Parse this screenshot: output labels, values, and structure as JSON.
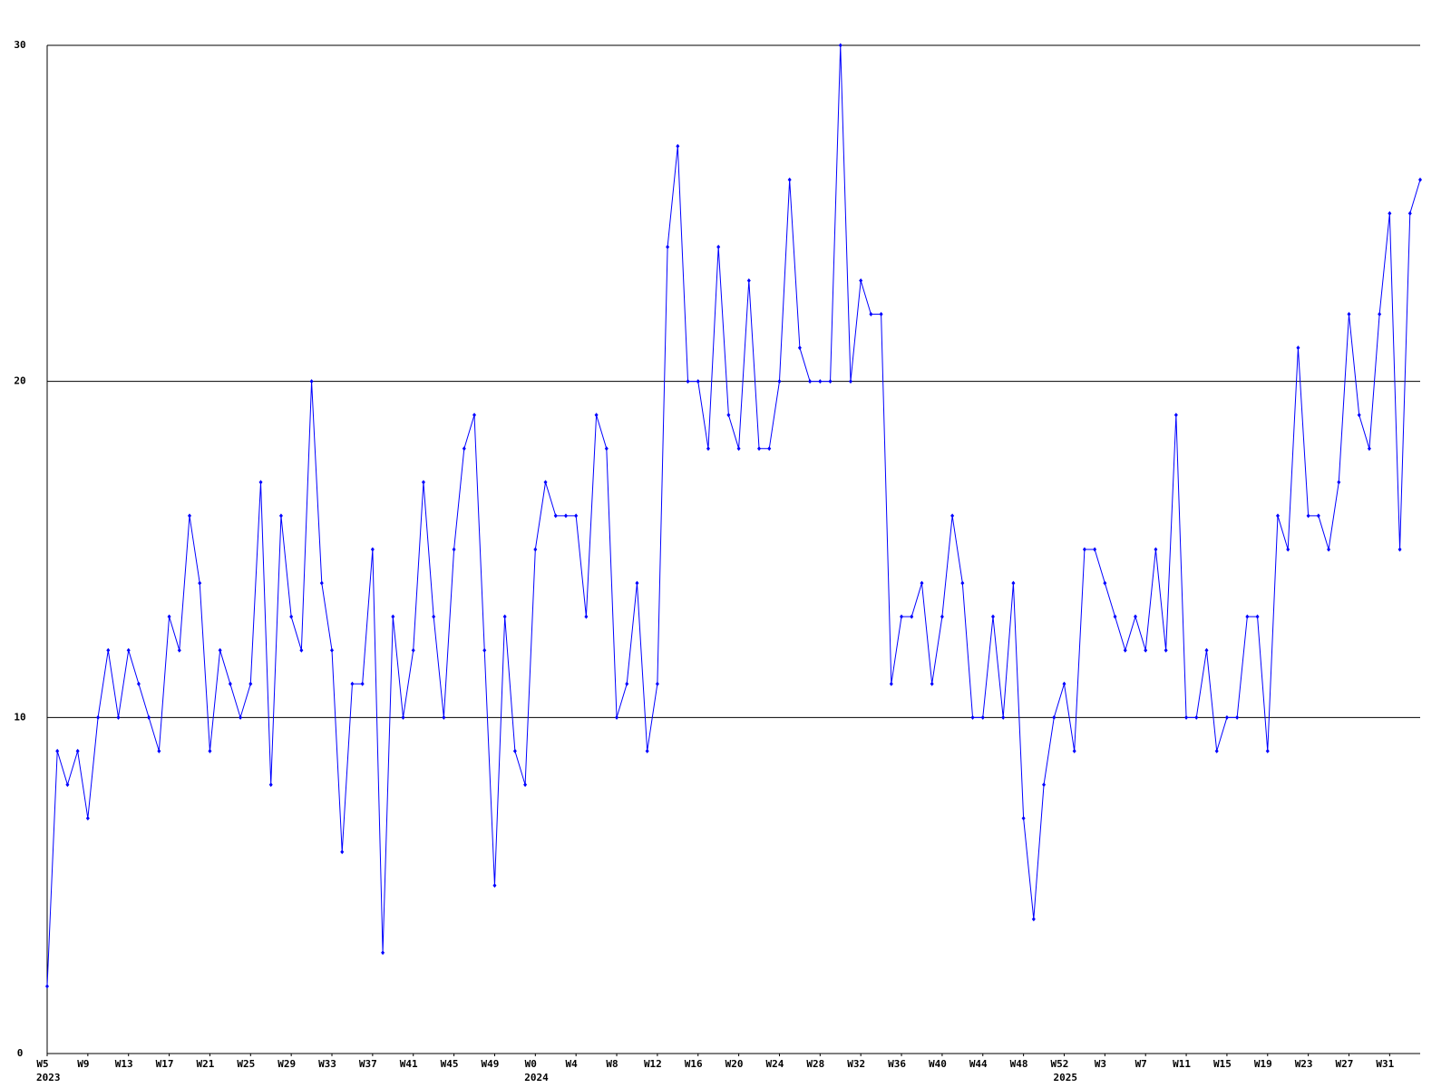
{
  "chart_data": {
    "type": "line",
    "categories": [
      "W5",
      null,
      null,
      null,
      "W9",
      null,
      null,
      null,
      "W13",
      null,
      null,
      null,
      "W17",
      null,
      null,
      null,
      "W21",
      null,
      null,
      null,
      "W25",
      null,
      null,
      null,
      "W29",
      null,
      null,
      null,
      "W33",
      null,
      null,
      null,
      "W37",
      null,
      null,
      null,
      "W41",
      null,
      null,
      null,
      "W45",
      null,
      null,
      null,
      "W49",
      null,
      null,
      null,
      "W0",
      null,
      null,
      null,
      "W4",
      null,
      null,
      null,
      "W8",
      null,
      null,
      null,
      "W12",
      null,
      null,
      null,
      "W16",
      null,
      null,
      null,
      "W20",
      null,
      null,
      null,
      "W24",
      null,
      null,
      null,
      "W28",
      null,
      null,
      null,
      "W32",
      null,
      null,
      null,
      "W36",
      null,
      null,
      null,
      "W40",
      null,
      null,
      null,
      "W44",
      null,
      null,
      null,
      "W48",
      null,
      null,
      null,
      "W52",
      null,
      null,
      null,
      "W3",
      null,
      null,
      null,
      "W7",
      null,
      null,
      null,
      "W11",
      null,
      null,
      null,
      "W15",
      null,
      null,
      null,
      "W19",
      null,
      null,
      null,
      "W23",
      null,
      null,
      null,
      "W27",
      null,
      null,
      null,
      "W31",
      null,
      null,
      null
    ],
    "x_groups": [
      {
        "label": "2023",
        "index": 0
      },
      {
        "label": "2024",
        "index": 48
      },
      {
        "label": "2025",
        "index": 100
      }
    ],
    "color": "#0000ff",
    "values": [
      2,
      9,
      8,
      9,
      7,
      10,
      12,
      10,
      12,
      11,
      10,
      9,
      13,
      12,
      16,
      14,
      9,
      12,
      11,
      10,
      11,
      17,
      8,
      16,
      13,
      12,
      20,
      14,
      12,
      6,
      11,
      11,
      15,
      3,
      13,
      10,
      12,
      17,
      13,
      10,
      15,
      18,
      19,
      12,
      5,
      13,
      9,
      8,
      15,
      17,
      16,
      16,
      16,
      13,
      19,
      18,
      10,
      11,
      14,
      9,
      11,
      24,
      27,
      20,
      20,
      18,
      24,
      19,
      18,
      23,
      18,
      18,
      20,
      26,
      21,
      20,
      20,
      20,
      30,
      20,
      23,
      22,
      22,
      11,
      13,
      13,
      14,
      11,
      13,
      16,
      14,
      10,
      10,
      13,
      10,
      14,
      7,
      4,
      8,
      10,
      11,
      9,
      15,
      15,
      14,
      13,
      12,
      13,
      12,
      15,
      12,
      19,
      10,
      10,
      12,
      9,
      10,
      10,
      13,
      13,
      9,
      16,
      15,
      21,
      16,
      16,
      15,
      17,
      22,
      19,
      18,
      22,
      25,
      15,
      25,
      26
    ],
    "ylim": [
      0,
      30
    ],
    "yticks": [
      0,
      10,
      20,
      30
    ],
    "grid": true
  }
}
